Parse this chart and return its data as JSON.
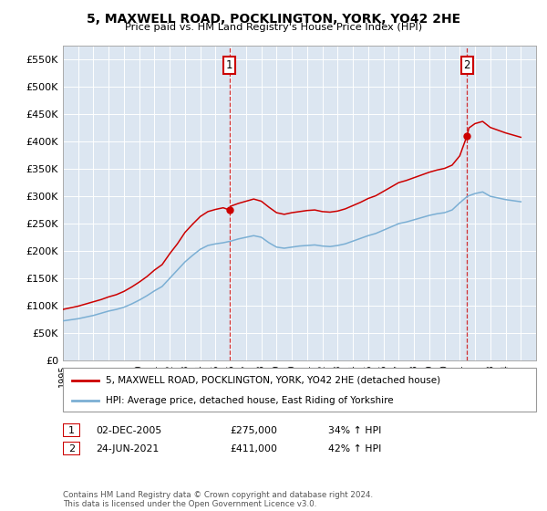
{
  "title": "5, MAXWELL ROAD, POCKLINGTON, YORK, YO42 2HE",
  "subtitle": "Price paid vs. HM Land Registry's House Price Index (HPI)",
  "ylabel_ticks": [
    "£0",
    "£50K",
    "£100K",
    "£150K",
    "£200K",
    "£250K",
    "£300K",
    "£350K",
    "£400K",
    "£450K",
    "£500K",
    "£550K"
  ],
  "ytick_values": [
    0,
    50000,
    100000,
    150000,
    200000,
    250000,
    300000,
    350000,
    400000,
    450000,
    500000,
    550000
  ],
  "ylim": [
    0,
    575000
  ],
  "background_color": "#ffffff",
  "plot_bg_color": "#dce6f1",
  "line1_color": "#cc0000",
  "line2_color": "#7bafd4",
  "sale1_date_num": 2005.917,
  "sale1_price": 275000,
  "sale2_date_num": 2021.479,
  "sale2_price": 411000,
  "transaction1": {
    "label": "1",
    "date": "02-DEC-2005",
    "price": "£275,000",
    "hpi": "34% ↑ HPI"
  },
  "transaction2": {
    "label": "2",
    "date": "24-JUN-2021",
    "price": "£411,000",
    "hpi": "42% ↑ HPI"
  },
  "legend_line1": "5, MAXWELL ROAD, POCKLINGTON, YORK, YO42 2HE (detached house)",
  "legend_line2": "HPI: Average price, detached house, East Riding of Yorkshire",
  "footer": "Contains HM Land Registry data © Crown copyright and database right 2024.\nThis data is licensed under the Open Government Licence v3.0.",
  "xmin": 1995,
  "xmax": 2026
}
